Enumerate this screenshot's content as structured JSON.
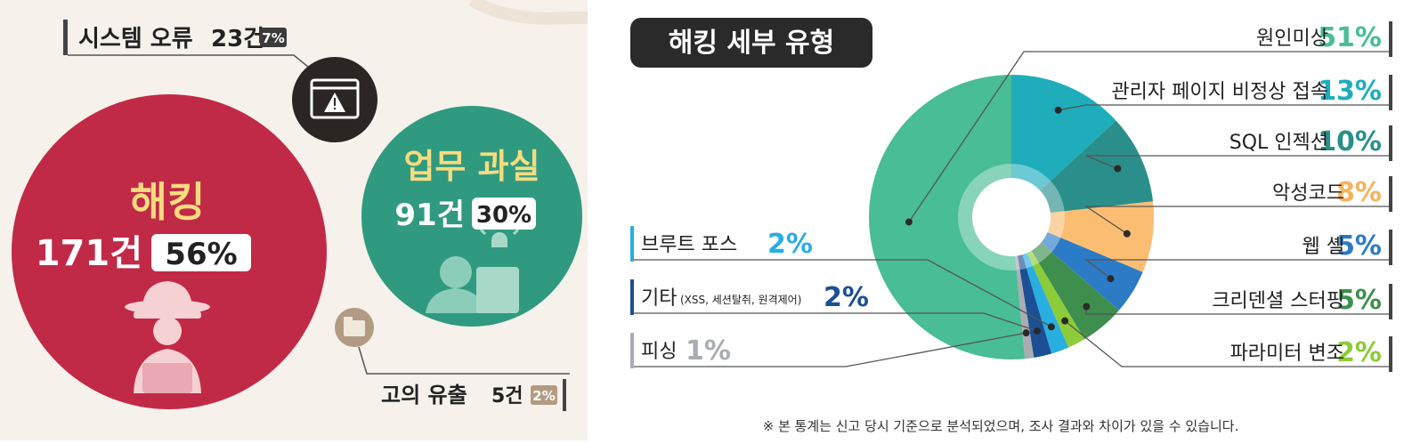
{
  "colors": {
    "hacking": "#c12a47",
    "negligence": "#2f9a80",
    "error_icon": "#2b2523",
    "leak_icon": "#b39b83",
    "cream": "#f6f1ea"
  },
  "left": {
    "system_error": {
      "label": "시스템 오류",
      "count": "23건",
      "pct": "7%"
    },
    "hacking": {
      "label": "해킹",
      "count": "171건",
      "pct": "56%"
    },
    "negligence": {
      "label": "업무 과실",
      "count": "91건",
      "pct": "30%"
    },
    "leak": {
      "label": "고의 유출",
      "count": "5건",
      "pct": "2%"
    },
    "icons": {
      "error": "window-warning-icon",
      "hacker": "hacker-icon",
      "worker": "worker-alarm-icon",
      "leak": "folder-leak-icon"
    }
  },
  "right": {
    "title": "해킹 세부 유형",
    "footnote": "※ 본 통계는 신고 당시 기준으로 분석되었으며, 조사 결과와 차이가 있을 수 있습니다."
  },
  "chart_data": [
    {
      "type": "bar",
      "categories": [
        "해킹",
        "업무 과실",
        "시스템 오류",
        "고의 유출"
      ],
      "values": [
        171,
        91,
        23,
        5
      ],
      "percents": [
        56,
        30,
        7,
        2
      ],
      "unit": "건"
    },
    {
      "type": "pie",
      "title": "해킹 세부 유형",
      "legend_position": "outside-labels",
      "slices": [
        {
          "label": "원인미상",
          "value": 51,
          "color": "#48bd96"
        },
        {
          "label": "관리자 페이지 비정상 접속",
          "value": 13,
          "color": "#1fadbc"
        },
        {
          "label": "SQL 인젝션",
          "value": 10,
          "color": "#2a8f8b"
        },
        {
          "label": "악성코드",
          "value": 8,
          "color": "#fbbd72"
        },
        {
          "label": "웹 셸",
          "value": 5,
          "color": "#2c7bc6"
        },
        {
          "label": "크리덴셜 스터핑",
          "value": 5,
          "color": "#3e8f4e"
        },
        {
          "label": "파라미터 변조",
          "value": 2,
          "color": "#8ccb39"
        },
        {
          "label": "브루트 포스",
          "value": 2,
          "color": "#29aee0"
        },
        {
          "label": "기타",
          "sublabel": "(XSS, 세션탈취, 원격제어)",
          "value": 2,
          "color": "#1c4f93"
        },
        {
          "label": "피싱",
          "value": 1,
          "color": "#a9adb2"
        }
      ],
      "pct_colors": [
        "#48bd96",
        "#1fadbc",
        "#2a8f8b",
        "#f6b25d",
        "#2c7bc6",
        "#3e8f4e",
        "#8ccb39",
        "#29aee0",
        "#1c4f93",
        "#a9adb2"
      ],
      "pct_suffix": "%"
    }
  ]
}
